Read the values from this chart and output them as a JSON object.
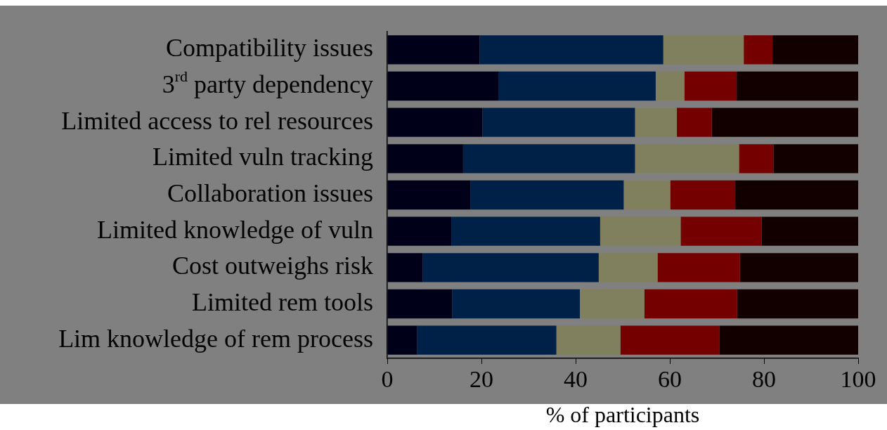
{
  "chart_data": {
    "type": "bar",
    "orientation": "horizontal",
    "stacked": true,
    "xlabel": "% of participants",
    "categories": [
      "Compatibility issues",
      "3$^{rd}$ party dependency",
      "Limited access to rel resources",
      "Limited vuln tracking",
      "Collaboration issues",
      "Limited knowledge of vuln",
      "Cost outweighs risk",
      "Limited rem tools",
      "Lim knowledge of rem process"
    ],
    "series": [
      {
        "color": "#000019",
        "values": [
          19.6,
          23.7,
          20.2,
          16.1,
          17.7,
          13.6,
          7.5,
          13.8,
          6.3
        ]
      },
      {
        "color": "#002147",
        "values": [
          39.0,
          33.3,
          32.4,
          36.5,
          32.5,
          31.6,
          37.4,
          27.1,
          29.6
        ]
      },
      {
        "color": "#80805f",
        "values": [
          17.1,
          6.1,
          8.9,
          22.1,
          9.9,
          17.1,
          12.5,
          13.7,
          13.6
        ]
      },
      {
        "color": "#750000",
        "values": [
          6.1,
          11.1,
          7.4,
          7.3,
          13.8,
          17.2,
          17.5,
          19.7,
          21.0
        ]
      },
      {
        "color": "#120000",
        "values": [
          18.2,
          25.8,
          31.1,
          18.0,
          26.1,
          20.5,
          25.1,
          25.7,
          29.5
        ]
      }
    ],
    "xlim": [
      0,
      100
    ],
    "xticks": [
      0,
      20,
      40,
      60,
      80,
      100
    ],
    "grid": false,
    "legend": false
  }
}
